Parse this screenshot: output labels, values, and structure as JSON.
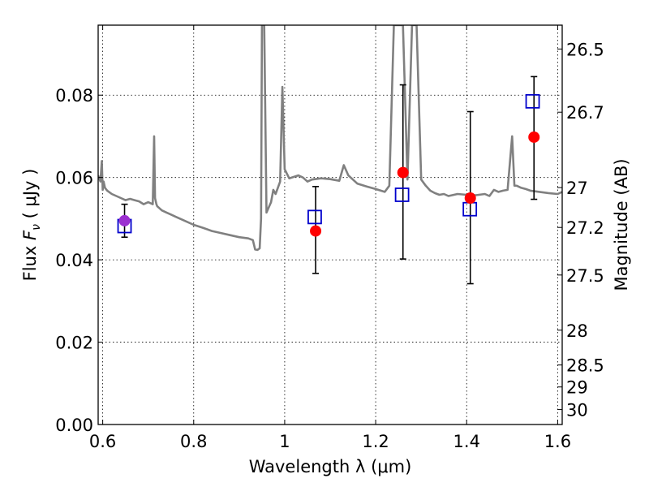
{
  "chart_data": {
    "type": "scatter",
    "xlabel": "Wavelength  λ (μm)",
    "ylabel": {
      "prefix": "Flux  ",
      "symbol": "F",
      "subscript": "ν",
      "suffix": "  ( μJy )"
    },
    "ylabel_right": "Magnitude (AB)",
    "xlim": [
      0.59,
      1.61
    ],
    "ylim": [
      0.0,
      0.097
    ],
    "grid": true,
    "x_ticks": [
      {
        "value": 0.6,
        "label": "0.6"
      },
      {
        "value": 0.8,
        "label": "0.8"
      },
      {
        "value": 1.0,
        "label": "1"
      },
      {
        "value": 1.2,
        "label": "1.2"
      },
      {
        "value": 1.4,
        "label": "1.4"
      },
      {
        "value": 1.6,
        "label": "1.6"
      }
    ],
    "y_ticks": [
      {
        "value": 0.0,
        "label": "0.00"
      },
      {
        "value": 0.02,
        "label": "0.02"
      },
      {
        "value": 0.04,
        "label": "0.04"
      },
      {
        "value": 0.06,
        "label": "0.06"
      },
      {
        "value": 0.08,
        "label": "0.08"
      }
    ],
    "right_ticks": [
      {
        "value": 26.5,
        "label": "26.5"
      },
      {
        "value": 26.7,
        "label": "26.7"
      },
      {
        "value": 27.0,
        "label": "27"
      },
      {
        "value": 27.2,
        "label": "27.2"
      },
      {
        "value": 27.5,
        "label": "27.5"
      },
      {
        "value": 28.0,
        "label": "28"
      },
      {
        "value": 28.5,
        "label": "28.5"
      },
      {
        "value": 29.0,
        "label": "29"
      },
      {
        "value": 30.0,
        "label": "30"
      }
    ],
    "colors": {
      "model": "#808080",
      "observed": "#ff0000",
      "synthetic": "#0000cc",
      "highlight": "#9b30d0",
      "errorbar": "#000000"
    },
    "series": [
      {
        "kind": "line",
        "x": [
          0.59,
          0.595,
          0.598,
          0.6,
          0.602,
          0.605,
          0.61,
          0.62,
          0.63,
          0.64,
          0.65,
          0.66,
          0.67,
          0.68,
          0.69,
          0.7,
          0.71,
          0.713,
          0.715,
          0.718,
          0.72,
          0.73,
          0.74,
          0.75,
          0.76,
          0.77,
          0.78,
          0.8,
          0.82,
          0.84,
          0.86,
          0.88,
          0.9,
          0.92,
          0.93,
          0.935,
          0.94,
          0.945,
          0.948,
          0.95,
          0.955,
          0.96,
          0.97,
          0.975,
          0.98,
          0.985,
          0.99,
          0.995,
          1.0,
          1.01,
          1.03,
          1.04,
          1.05,
          1.06,
          1.08,
          1.1,
          1.12,
          1.13,
          1.14,
          1.15,
          1.16,
          1.18,
          1.2,
          1.22,
          1.23,
          1.24,
          1.25,
          1.26,
          1.27,
          1.28,
          1.29,
          1.3,
          1.31,
          1.32,
          1.33,
          1.34,
          1.35,
          1.36,
          1.38,
          1.4,
          1.42,
          1.44,
          1.45,
          1.46,
          1.47,
          1.48,
          1.49,
          1.5,
          1.505,
          1.51,
          1.52,
          1.53,
          1.54,
          1.56,
          1.58,
          1.6,
          1.61
        ],
        "y": [
          0.0605,
          0.059,
          0.064,
          0.057,
          0.059,
          0.0575,
          0.0568,
          0.056,
          0.0555,
          0.055,
          0.0545,
          0.0548,
          0.0545,
          0.0542,
          0.0535,
          0.054,
          0.0535,
          0.07,
          0.055,
          0.0535,
          0.053,
          0.052,
          0.0515,
          0.051,
          0.0505,
          0.05,
          0.0495,
          0.0485,
          0.0478,
          0.047,
          0.0465,
          0.046,
          0.0455,
          0.0452,
          0.0448,
          0.0425,
          0.0424,
          0.0428,
          0.05,
          0.097,
          0.097,
          0.0515,
          0.054,
          0.057,
          0.056,
          0.0575,
          0.059,
          0.082,
          0.062,
          0.0598,
          0.0605,
          0.06,
          0.059,
          0.0595,
          0.0598,
          0.0596,
          0.0592,
          0.063,
          0.0605,
          0.0595,
          0.0585,
          0.0578,
          0.0572,
          0.0565,
          0.058,
          0.097,
          0.097,
          0.097,
          0.0595,
          0.097,
          0.097,
          0.0595,
          0.058,
          0.0568,
          0.0562,
          0.0558,
          0.056,
          0.0555,
          0.056,
          0.0558,
          0.0557,
          0.056,
          0.0555,
          0.057,
          0.0565,
          0.0568,
          0.057,
          0.07,
          0.058,
          0.058,
          0.0575,
          0.0572,
          0.0568,
          0.0565,
          0.0562,
          0.056,
          0.0565
        ]
      },
      {
        "kind": "points",
        "marker": "square",
        "x": [
          0.648,
          1.066,
          1.258,
          1.407,
          1.545
        ],
        "y": [
          0.0482,
          0.0504,
          0.0558,
          0.0523,
          0.0785
        ]
      },
      {
        "kind": "points",
        "marker": "circle",
        "x": [
          0.648,
          1.068,
          1.26,
          1.408,
          1.548
        ],
        "y": [
          0.0495,
          0.047,
          0.0612,
          0.055,
          0.0698
        ],
        "yerr_low": [
          0.0455,
          0.0367,
          0.0402,
          0.0342,
          0.0547
        ],
        "yerr_high": [
          0.0535,
          0.0578,
          0.0825,
          0.076,
          0.0845
        ]
      }
    ]
  }
}
